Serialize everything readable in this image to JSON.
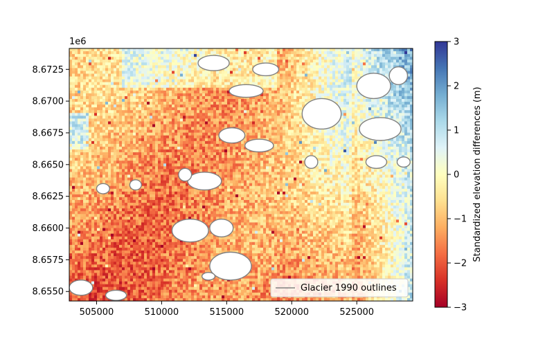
{
  "chart_data": {
    "type": "heatmap",
    "title": "",
    "xlabel": "",
    "ylabel": "",
    "x_ticks": [
      505000,
      510000,
      515000,
      520000,
      525000
    ],
    "x_tick_labels": [
      "505000",
      "510000",
      "515000",
      "520000",
      "525000"
    ],
    "xlim": [
      502900,
      529300
    ],
    "y_offset_label": "1e6",
    "y_ticks": [
      8.655,
      8.6575,
      8.66,
      8.6625,
      8.665,
      8.6675,
      8.67,
      8.6725
    ],
    "y_tick_labels": [
      "8.6550",
      "8.6575",
      "8.6600",
      "8.6625",
      "8.6650",
      "8.6675",
      "8.6700",
      "8.6725"
    ],
    "ylim": [
      8.65425,
      8.67415
    ],
    "colorbar": {
      "label": "Standardized elevation differences (m)",
      "range": [
        -3,
        3
      ],
      "ticks": [
        -3,
        -2,
        -1,
        0,
        1,
        2,
        3
      ],
      "tick_labels": [
        "−3",
        "−2",
        "−1",
        "0",
        "1",
        "2",
        "3"
      ],
      "colormap": "RdYlBu",
      "colors": [
        "#a50026",
        "#d73027",
        "#f46d43",
        "#fdae61",
        "#fee090",
        "#ffffbf",
        "#e0f3f8",
        "#abd9e9",
        "#74add1",
        "#4575b4",
        "#313695"
      ]
    },
    "legend": {
      "position": "lower-right",
      "entries": [
        {
          "label": "Glacier 1990 outlines",
          "color": "#808080"
        }
      ]
    },
    "glacier_outlines": [
      {
        "x": 514000,
        "y": 8.673,
        "rx": 1200,
        "ry": 0.0006
      },
      {
        "x": 518000,
        "y": 8.6725,
        "rx": 1000,
        "ry": 0.0005
      },
      {
        "x": 516500,
        "y": 8.6708,
        "rx": 1300,
        "ry": 0.0005
      },
      {
        "x": 522300,
        "y": 8.669,
        "rx": 1500,
        "ry": 0.0012
      },
      {
        "x": 526300,
        "y": 8.6712,
        "rx": 1300,
        "ry": 0.001
      },
      {
        "x": 528200,
        "y": 8.672,
        "rx": 700,
        "ry": 0.0007
      },
      {
        "x": 526800,
        "y": 8.6678,
        "rx": 1600,
        "ry": 0.0009
      },
      {
        "x": 526500,
        "y": 8.6652,
        "rx": 800,
        "ry": 0.0005
      },
      {
        "x": 528600,
        "y": 8.6652,
        "rx": 500,
        "ry": 0.0004
      },
      {
        "x": 517500,
        "y": 8.6665,
        "rx": 1100,
        "ry": 0.0005
      },
      {
        "x": 515400,
        "y": 8.6673,
        "rx": 1000,
        "ry": 0.0006
      },
      {
        "x": 513300,
        "y": 8.6637,
        "rx": 1300,
        "ry": 0.0007
      },
      {
        "x": 511800,
        "y": 8.6642,
        "rx": 500,
        "ry": 0.0005
      },
      {
        "x": 521500,
        "y": 8.6652,
        "rx": 500,
        "ry": 0.0005
      },
      {
        "x": 512200,
        "y": 8.6598,
        "rx": 1400,
        "ry": 0.0009
      },
      {
        "x": 514600,
        "y": 8.66,
        "rx": 900,
        "ry": 0.0007
      },
      {
        "x": 515300,
        "y": 8.657,
        "rx": 1600,
        "ry": 0.0011
      },
      {
        "x": 513600,
        "y": 8.6562,
        "rx": 500,
        "ry": 0.0003
      },
      {
        "x": 508000,
        "y": 8.6634,
        "rx": 450,
        "ry": 0.0004
      },
      {
        "x": 505500,
        "y": 8.6631,
        "rx": 500,
        "ry": 0.0004
      },
      {
        "x": 503800,
        "y": 8.6553,
        "rx": 900,
        "ry": 0.0006
      },
      {
        "x": 506500,
        "y": 8.6547,
        "rx": 800,
        "ry": 0.0004
      }
    ]
  }
}
